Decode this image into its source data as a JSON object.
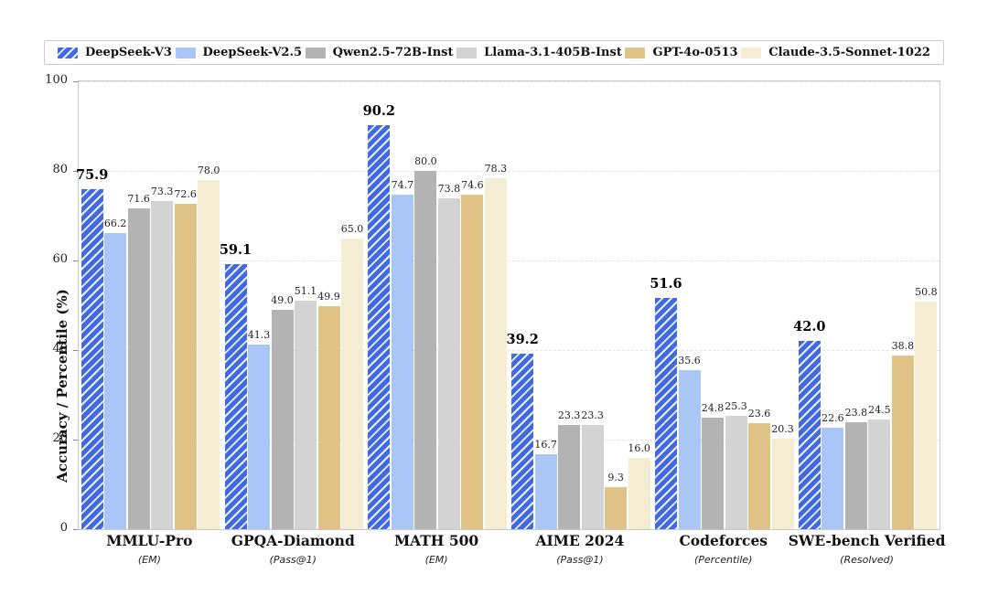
{
  "chart_data": {
    "type": "bar",
    "title": "",
    "ylabel": "Accuracy / Percentile (%)",
    "ylim": [
      0,
      100
    ],
    "yticks": [
      0,
      20,
      40,
      60,
      80,
      100
    ],
    "grid": "horizontal-dashed",
    "legend_position": "top",
    "categories": [
      {
        "name": "MMLU-Pro",
        "metric": "(EM)"
      },
      {
        "name": "GPQA-Diamond",
        "metric": "(Pass@1)"
      },
      {
        "name": "MATH 500",
        "metric": "(EM)"
      },
      {
        "name": "AIME 2024",
        "metric": "(Pass@1)"
      },
      {
        "name": "Codeforces",
        "metric": "(Percentile)"
      },
      {
        "name": "SWE-bench Verified",
        "metric": "(Resolved)"
      }
    ],
    "series": [
      {
        "name": "DeepSeek-V3",
        "color": "#4169e1",
        "hatch": "/",
        "values": [
          75.9,
          59.1,
          90.2,
          39.2,
          51.6,
          42.0
        ]
      },
      {
        "name": "DeepSeek-V2.5",
        "color": "#a9c6f7",
        "hatch": null,
        "values": [
          66.2,
          41.3,
          74.7,
          16.7,
          35.6,
          22.6
        ]
      },
      {
        "name": "Qwen2.5-72B-Inst",
        "color": "#b3b3b3",
        "hatch": null,
        "values": [
          71.6,
          49.0,
          80.0,
          23.3,
          24.8,
          23.8
        ]
      },
      {
        "name": "Llama-3.1-405B-Inst",
        "color": "#d3d3d3",
        "hatch": null,
        "values": [
          73.3,
          51.1,
          73.8,
          23.3,
          25.3,
          24.5
        ]
      },
      {
        "name": "GPT-4o-0513",
        "color": "#e0c386",
        "hatch": null,
        "values": [
          72.6,
          49.9,
          74.6,
          9.3,
          23.6,
          38.8
        ]
      },
      {
        "name": "Claude-3.5-Sonnet-1022",
        "color": "#f5ecd4",
        "hatch": null,
        "values": [
          78.0,
          65.0,
          78.3,
          16.0,
          20.3,
          50.8
        ]
      }
    ]
  }
}
